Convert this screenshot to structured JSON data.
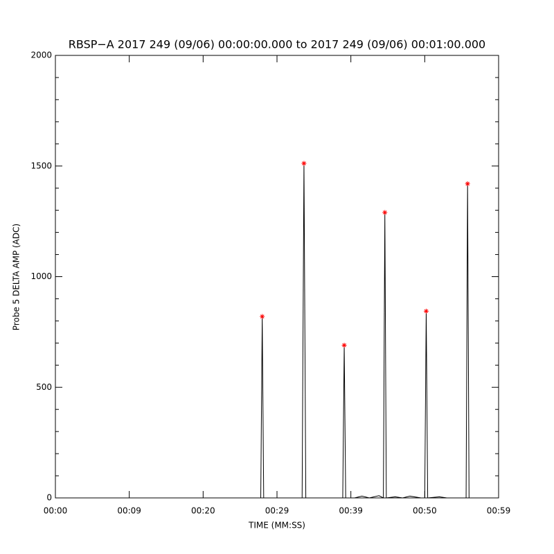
{
  "chart_data": {
    "type": "line",
    "title": "RBSP−A 2017 249 (09/06) 00:00:00.000 to 2017 249 (09/06) 00:01:00.000",
    "x_label": "TIME (MM:SS)",
    "y_label": "Probe 5 DELTA AMP (ADC)",
    "xlim": [
      0,
      60
    ],
    "xticks": [
      {
        "value": 0,
        "label": "00:00"
      },
      {
        "value": 10,
        "label": "00:09"
      },
      {
        "value": 20,
        "label": "00:20"
      },
      {
        "value": 30,
        "label": "00:29"
      },
      {
        "value": 40,
        "label": "00:39"
      },
      {
        "value": 50,
        "label": "00:50"
      },
      {
        "value": 60,
        "label": "00:59"
      }
    ],
    "ylim": [
      0,
      2000
    ],
    "yticks": [
      0,
      500,
      1000,
      1500,
      2000
    ],
    "yminorticks": [
      100,
      200,
      300,
      400,
      600,
      700,
      800,
      900,
      1100,
      1200,
      1300,
      1400,
      1600,
      1700,
      1800,
      1900
    ],
    "series": [
      {
        "color": "#000000",
        "x": [
          0,
          27.8,
          28.0,
          28.2,
          33.4,
          33.65,
          33.9,
          38.9,
          39.1,
          39.3,
          40.5,
          41.5,
          42.5,
          43.8,
          44.4,
          44.6,
          44.8,
          46,
          47,
          48,
          49.5,
          50.0,
          50.2,
          50.4,
          52,
          53,
          55.6,
          55.8,
          56.0,
          60
        ],
        "values": [
          0,
          0,
          820,
          0,
          0,
          1512,
          0,
          0,
          690,
          0,
          0,
          8,
          0,
          10,
          0,
          1290,
          0,
          5,
          0,
          8,
          0,
          0,
          844,
          0,
          5,
          0,
          0,
          1420,
          0,
          0
        ]
      },
      {
        "type": "scatter",
        "color": "#ff0000",
        "x": [
          28.0,
          33.65,
          39.1,
          44.6,
          50.2,
          55.8
        ],
        "values": [
          820,
          1512,
          690,
          1290,
          844,
          1420
        ]
      }
    ]
  }
}
